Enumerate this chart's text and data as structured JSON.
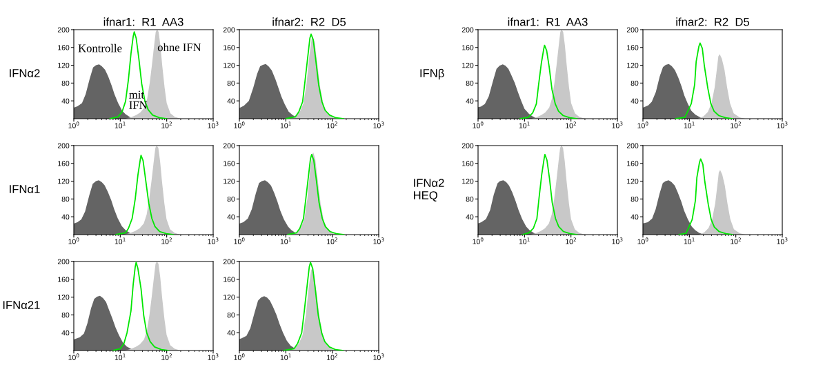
{
  "chart_data": [
    {
      "type": "area",
      "title": "ifnar1:  R1  AA3",
      "ylabel": "IFNα2",
      "log": "x",
      "xlim": [
        1,
        1000
      ],
      "xticks": [
        {
          "value": 1,
          "label": "10$^{0}$"
        },
        {
          "value": 10,
          "label": "10$^{1}$"
        },
        {
          "value": 100,
          "label": "10$^{2}$"
        },
        {
          "value": 1000,
          "label": "10$^{3}$"
        }
      ],
      "ylim": [
        0,
        200
      ],
      "yticks": [
        40,
        80,
        120,
        160,
        200
      ],
      "annotations": [
        "Kontrolle",
        "ohne IFN",
        "mit\nIFN"
      ],
      "series": [
        {
          "color": "#646464",
          "x": [
            1,
            1.2,
            1.5,
            1.8,
            2.2,
            2.6,
            3,
            3.5,
            4,
            4.7,
            5.5,
            6.5,
            7.5,
            9,
            11,
            13,
            16,
            20
          ],
          "values": [
            25,
            28,
            35,
            55,
            90,
            115,
            120,
            122,
            118,
            110,
            95,
            75,
            55,
            35,
            18,
            10,
            4,
            0
          ]
        },
        {
          "color": "#c8c8c8",
          "x": [
            13,
            17,
            22,
            27,
            33,
            38,
            43,
            48,
            53,
            58,
            62,
            67,
            73,
            80,
            90,
            100,
            120,
            150,
            200
          ],
          "values": [
            0,
            3,
            8,
            14,
            25,
            45,
            80,
            120,
            160,
            195,
            200,
            195,
            165,
            120,
            70,
            35,
            12,
            4,
            0
          ]
        },
        {
          "type": "line",
          "color": "#00e600",
          "x": [
            6,
            9,
            11,
            13,
            15,
            17,
            19,
            20,
            22,
            25,
            29,
            34,
            40,
            50,
            70,
            100
          ],
          "values": [
            0,
            4,
            16,
            39,
            88,
            146,
            185,
            195,
            181,
            137,
            78,
            39,
            20,
            8,
            2,
            0
          ]
        }
      ]
    },
    {
      "type": "area",
      "title": "ifnar2:  R2  D5",
      "log": "x",
      "xlim": [
        1,
        1000
      ],
      "xticks": [
        {
          "value": 1,
          "label": "10$^{0}$"
        },
        {
          "value": 10,
          "label": "10$^{1}$"
        },
        {
          "value": 100,
          "label": "10$^{2}$"
        },
        {
          "value": 1000,
          "label": "10$^{3}$"
        }
      ],
      "ylim": [
        0,
        200
      ],
      "yticks": [
        40,
        80,
        120,
        160,
        200
      ],
      "series": [
        {
          "color": "#646464",
          "x": [
            1,
            1.25,
            1.6,
            2,
            2.4,
            2.8,
            3.2,
            3.7,
            4.3,
            5,
            6,
            7,
            8,
            9.5,
            11.5,
            14,
            17,
            21
          ],
          "values": [
            24,
            29,
            40,
            70,
            100,
            118,
            121,
            123,
            117,
            108,
            88,
            68,
            50,
            32,
            16,
            8,
            3,
            0
          ]
        },
        {
          "color": "#c8c8c8",
          "x": [
            12,
            16,
            20,
            24,
            28,
            32,
            36,
            38,
            42,
            48,
            55,
            65,
            80,
            100,
            140
          ],
          "values": [
            0,
            5,
            15,
            35,
            80,
            140,
            180,
            185,
            170,
            120,
            70,
            30,
            10,
            3,
            0
          ]
        },
        {
          "type": "line",
          "color": "#00e600",
          "x": [
            10,
            16,
            19,
            23,
            26,
            30,
            33,
            35,
            39,
            44,
            51,
            60,
            70,
            88,
            120,
            175
          ],
          "values": [
            0,
            4,
            15,
            38,
            86,
            143,
            181,
            190,
            177,
            133,
            76,
            38,
            19,
            8,
            2,
            0
          ]
        }
      ]
    },
    {
      "type": "area",
      "title": "ifnar1:  R1  AA3",
      "ylabel": "IFNβ",
      "log": "x",
      "xlim": [
        1,
        1000
      ],
      "xticks": [
        {
          "value": 1,
          "label": "10$^{0}$"
        },
        {
          "value": 10,
          "label": "10$^{1}$"
        },
        {
          "value": 100,
          "label": "10$^{2}$"
        },
        {
          "value": 1000,
          "label": "10$^{3}$"
        }
      ],
      "ylim": [
        0,
        200
      ],
      "yticks": [
        40,
        80,
        120,
        160,
        200
      ],
      "series": [
        {
          "color": "#646464",
          "x": [
            1,
            1.15,
            1.4,
            1.7,
            2.1,
            2.5,
            2.9,
            3.4,
            3.9,
            4.5,
            5.2,
            6.2,
            7.2,
            8.5,
            10,
            12.5,
            15,
            19
          ],
          "values": [
            26,
            27,
            33,
            50,
            85,
            112,
            119,
            122,
            119,
            112,
            98,
            80,
            60,
            40,
            22,
            11,
            5,
            0
          ]
        },
        {
          "color": "#c8c8c8",
          "x": [
            14,
            18,
            23,
            28,
            34,
            39,
            44,
            49,
            54,
            59,
            63,
            68,
            74,
            81,
            91,
            101,
            122,
            152,
            205
          ],
          "values": [
            0,
            3,
            8,
            14,
            25,
            45,
            80,
            120,
            160,
            195,
            200,
            195,
            165,
            120,
            70,
            35,
            12,
            4,
            0
          ]
        },
        {
          "type": "line",
          "color": "#00e600",
          "x": [
            8,
            12,
            15,
            18,
            20,
            23,
            26,
            27,
            30,
            34,
            39,
            46,
            54,
            68,
            95,
            135
          ],
          "values": [
            0,
            3,
            13,
            33,
            74,
            124,
            157,
            165,
            153,
            116,
            66,
            33,
            17,
            7,
            2,
            0
          ]
        }
      ]
    },
    {
      "type": "area",
      "title": "ifnar2:  R2  D5",
      "log": "x",
      "xlim": [
        1,
        1000
      ],
      "xticks": [
        {
          "value": 1,
          "label": "10$^{0}$"
        },
        {
          "value": 10,
          "label": "10$^{1}$"
        },
        {
          "value": 100,
          "label": "10$^{2}$"
        },
        {
          "value": 1000,
          "label": "10$^{3}$"
        }
      ],
      "ylim": [
        0,
        200
      ],
      "yticks": [
        40,
        80,
        120,
        160,
        200
      ],
      "series": [
        {
          "color": "#646464",
          "x": [
            1,
            1.3,
            1.55,
            1.9,
            2.3,
            2.7,
            3.1,
            3.6,
            4.2,
            4.9,
            5.8,
            6.8,
            7.8,
            9.2,
            11,
            13.5,
            16.5,
            20
          ],
          "values": [
            25,
            30,
            38,
            60,
            95,
            116,
            121,
            123,
            118,
            109,
            92,
            72,
            52,
            34,
            18,
            9,
            4,
            0
          ]
        },
        {
          "color": "#c8c8c8",
          "x": [
            15,
            20,
            25,
            30,
            35,
            40,
            42,
            45,
            50,
            57,
            65,
            75,
            90,
            120,
            160
          ],
          "values": [
            0,
            5,
            15,
            35,
            70,
            120,
            140,
            145,
            135,
            110,
            70,
            35,
            12,
            3,
            0
          ]
        },
        {
          "type": "line",
          "color": "#00e600",
          "x": [
            5,
            8,
            9,
            11,
            13,
            14,
            16,
            17,
            19,
            21,
            25,
            29,
            34,
            43,
            60,
            85
          ],
          "values": [
            0,
            3,
            14,
            34,
            77,
            128,
            162,
            170,
            158,
            119,
            68,
            34,
            17,
            7,
            2,
            0
          ]
        }
      ]
    },
    {
      "type": "area",
      "ylabel": "IFNα1",
      "log": "x",
      "xlim": [
        1,
        1000
      ],
      "xticks": [
        {
          "value": 1,
          "label": "10$^{0}$"
        },
        {
          "value": 10,
          "label": "10$^{1}$"
        },
        {
          "value": 100,
          "label": "10$^{2}$"
        },
        {
          "value": 1000,
          "label": "10$^{3}$"
        }
      ],
      "ylim": [
        0,
        200
      ],
      "yticks": [
        40,
        80,
        120,
        160,
        200
      ],
      "series": [
        {
          "color": "#646464",
          "x": [
            1,
            1.2,
            1.45,
            1.75,
            2.15,
            2.55,
            3,
            3.45,
            4,
            4.6,
            5.4,
            6.4,
            7.4,
            8.8,
            10.8,
            13,
            16,
            20
          ],
          "values": [
            25,
            28,
            34,
            52,
            88,
            114,
            120,
            122,
            118,
            111,
            96,
            77,
            57,
            37,
            19,
            10,
            4,
            0
          ]
        },
        {
          "color": "#c8c8c8",
          "x": [
            12,
            16,
            21,
            26,
            32,
            37,
            42,
            47,
            52,
            57,
            61,
            66,
            72,
            79,
            89,
            99,
            118,
            148,
            195
          ],
          "values": [
            0,
            3,
            8,
            14,
            25,
            45,
            80,
            120,
            160,
            195,
            200,
            195,
            165,
            120,
            70,
            35,
            12,
            4,
            0
          ]
        },
        {
          "type": "line",
          "color": "#00e600",
          "x": [
            8,
            13,
            15,
            18,
            21,
            24,
            27,
            28,
            31,
            35,
            41,
            48,
            56,
            70,
            98,
            140
          ],
          "values": [
            0,
            4,
            14,
            36,
            80,
            134,
            169,
            178,
            166,
            125,
            71,
            36,
            18,
            7,
            2,
            0
          ]
        }
      ]
    },
    {
      "type": "area",
      "log": "x",
      "xlim": [
        1,
        1000
      ],
      "xticks": [
        {
          "value": 1,
          "label": "10$^{0}$"
        },
        {
          "value": 10,
          "label": "10$^{1}$"
        },
        {
          "value": 100,
          "label": "10$^{2}$"
        },
        {
          "value": 1000,
          "label": "10$^{3}$"
        }
      ],
      "ylim": [
        0,
        200
      ],
      "yticks": [
        40,
        80,
        120,
        160,
        200
      ],
      "series": [
        {
          "color": "#646464",
          "x": [
            1,
            1.22,
            1.52,
            1.85,
            2.25,
            2.65,
            3.05,
            3.55,
            4.1,
            4.8,
            5.6,
            6.6,
            7.6,
            9.1,
            11.2,
            13.2,
            16.2,
            20.5
          ],
          "values": [
            25,
            28,
            36,
            57,
            92,
            116,
            120,
            122,
            118,
            110,
            94,
            74,
            54,
            34,
            18,
            10,
            4,
            0
          ]
        },
        {
          "color": "#c8c8c8",
          "x": [
            13,
            17,
            21,
            25,
            29,
            33,
            37,
            39,
            43,
            49,
            56,
            66,
            81,
            101,
            142
          ],
          "values": [
            0,
            5,
            15,
            35,
            80,
            140,
            180,
            185,
            170,
            120,
            70,
            30,
            10,
            3,
            0
          ]
        },
        {
          "type": "line",
          "color": "#00e600",
          "x": [
            11,
            17,
            20,
            24,
            27,
            31,
            34,
            36,
            40,
            45,
            52,
            61,
            71,
            89,
            122,
            178
          ],
          "values": [
            0,
            4,
            14,
            36,
            81,
            135,
            171,
            180,
            167,
            126,
            72,
            36,
            18,
            7,
            2,
            0
          ]
        }
      ]
    },
    {
      "type": "area",
      "ylabel": "IFNα2\nHEQ",
      "log": "x",
      "xlim": [
        1,
        1000
      ],
      "xticks": [
        {
          "value": 1,
          "label": "10$^{0}$"
        },
        {
          "value": 10,
          "label": "10$^{1}$"
        },
        {
          "value": 100,
          "label": "10$^{2}$"
        },
        {
          "value": 1000,
          "label": "10$^{3}$"
        }
      ],
      "ylim": [
        0,
        200
      ],
      "yticks": [
        40,
        80,
        120,
        160,
        200
      ],
      "series": [
        {
          "color": "#646464",
          "x": [
            1,
            1.18,
            1.48,
            1.82,
            2.18,
            2.62,
            2.95,
            3.5,
            4.05,
            4.65,
            5.45,
            6.45,
            7.45,
            8.9,
            10.9,
            12.8,
            15.8,
            19.5
          ],
          "values": [
            25,
            28,
            35,
            55,
            90,
            115,
            120,
            122,
            118,
            110,
            95,
            75,
            55,
            35,
            18,
            10,
            4,
            0
          ]
        },
        {
          "color": "#c8c8c8",
          "x": [
            13.5,
            17.5,
            22.5,
            27.5,
            33.5,
            38.5,
            43.5,
            48.5,
            53.5,
            58.5,
            62.5,
            67.5,
            73.5,
            80.5,
            90.5,
            100.5,
            121,
            151,
            202
          ],
          "values": [
            0,
            3,
            8,
            14,
            25,
            45,
            80,
            120,
            160,
            195,
            200,
            195,
            165,
            120,
            70,
            35,
            12,
            4,
            0
          ]
        },
        {
          "type": "line",
          "color": "#00e600",
          "x": [
            9,
            12.5,
            15.5,
            18.5,
            20.5,
            23.5,
            26.5,
            27.5,
            30.5,
            34.5,
            39.5,
            46.5,
            54.5,
            68.5,
            96,
            136
          ],
          "values": [
            0,
            4,
            14,
            36,
            81,
            135,
            171,
            180,
            167,
            126,
            72,
            36,
            18,
            7,
            2,
            0
          ]
        }
      ]
    },
    {
      "type": "area",
      "log": "x",
      "xlim": [
        1,
        1000
      ],
      "xticks": [
        {
          "value": 1,
          "label": "10$^{0}$"
        },
        {
          "value": 10,
          "label": "10$^{1}$"
        },
        {
          "value": 100,
          "label": "10$^{2}$"
        },
        {
          "value": 1000,
          "label": "10$^{3}$"
        }
      ],
      "ylim": [
        0,
        200
      ],
      "yticks": [
        40,
        80,
        120,
        160,
        200
      ],
      "series": [
        {
          "color": "#646464",
          "x": [
            1,
            1.28,
            1.58,
            1.88,
            2.28,
            2.68,
            3.08,
            3.58,
            4.15,
            4.85,
            5.65,
            6.7,
            7.7,
            9.3,
            11.3,
            13.3,
            16.3,
            21
          ],
          "values": [
            25,
            28,
            36,
            57,
            92,
            116,
            120,
            122,
            118,
            110,
            94,
            74,
            54,
            34,
            18,
            10,
            4,
            0
          ]
        },
        {
          "color": "#c8c8c8",
          "x": [
            16,
            21,
            26,
            31,
            36,
            41,
            43,
            46,
            51,
            58,
            66,
            76,
            91,
            121,
            162
          ],
          "values": [
            0,
            5,
            15,
            35,
            70,
            120,
            140,
            145,
            135,
            110,
            70,
            35,
            12,
            3,
            0
          ]
        },
        {
          "type": "line",
          "color": "#00e600",
          "x": [
            6,
            8.5,
            9.5,
            11.5,
            13.5,
            14.5,
            16.5,
            17.5,
            19.5,
            21.5,
            25.5,
            29.5,
            34.5,
            43.5,
            61,
            86
          ],
          "values": [
            0,
            3,
            14,
            34,
            77,
            128,
            162,
            170,
            158,
            119,
            68,
            34,
            17,
            7,
            2,
            0
          ]
        }
      ]
    },
    {
      "type": "area",
      "ylabel": "IFNα21",
      "log": "x",
      "xlim": [
        1,
        1000
      ],
      "xticks": [
        {
          "value": 1,
          "label": "10$^{0}$"
        },
        {
          "value": 10,
          "label": "10$^{1}$"
        },
        {
          "value": 100,
          "label": "10$^{2}$"
        },
        {
          "value": 1000,
          "label": "10$^{3}$"
        }
      ],
      "ylim": [
        0,
        200
      ],
      "yticks": [
        40,
        80,
        120,
        160,
        200
      ],
      "series": [
        {
          "color": "#646464",
          "x": [
            1,
            1.35,
            1.65,
            1.95,
            2.35,
            2.75,
            3.15,
            3.65,
            4.25,
            4.95,
            5.7,
            6.75,
            7.9,
            9.4,
            11.4,
            13.8,
            17,
            21.5
          ],
          "values": [
            25,
            30,
            38,
            60,
            95,
            116,
            121,
            123,
            118,
            109,
            92,
            72,
            52,
            34,
            18,
            9,
            4,
            0
          ]
        },
        {
          "color": "#c8c8c8",
          "x": [
            12.5,
            16.5,
            21.5,
            26.5,
            32.5,
            37.5,
            42.5,
            47.5,
            52.5,
            57.5,
            61.5,
            66.5,
            72.5,
            79.5,
            89.5,
            99.5,
            119,
            149,
            198
          ],
          "values": [
            0,
            3,
            8,
            14,
            25,
            45,
            80,
            120,
            160,
            195,
            200,
            195,
            165,
            120,
            70,
            35,
            12,
            4,
            0
          ]
        },
        {
          "type": "line",
          "color": "#00e600",
          "x": [
            7,
            10,
            12,
            14,
            17,
            19,
            21,
            22,
            24,
            28,
            32,
            37,
            44,
            55,
            77,
            110
          ],
          "values": [
            0,
            4,
            16,
            40,
            89,
            149,
            188,
            198,
            184,
            139,
            79,
            40,
            20,
            8,
            2,
            0
          ]
        }
      ]
    },
    {
      "type": "area",
      "log": "x",
      "xlim": [
        1,
        1000
      ],
      "xticks": [
        {
          "value": 1,
          "label": "10$^{0}$"
        },
        {
          "value": 10,
          "label": "10$^{1}$"
        },
        {
          "value": 100,
          "label": "10$^{2}$"
        },
        {
          "value": 1000,
          "label": "10$^{3}$"
        }
      ],
      "ylim": [
        0,
        200
      ],
      "yticks": [
        40,
        80,
        120,
        160,
        200
      ],
      "series": [
        {
          "color": "#646464",
          "x": [
            1,
            1.1,
            1.42,
            1.72,
            2.12,
            2.52,
            2.92,
            3.42,
            3.95,
            4.55,
            5.3,
            6.3,
            7.3,
            8.7,
            10.5,
            12.7,
            15.5,
            19.8
          ],
          "values": [
            26,
            27,
            33,
            50,
            85,
            112,
            119,
            122,
            119,
            112,
            98,
            80,
            60,
            40,
            22,
            11,
            5,
            0
          ]
        },
        {
          "color": "#c8c8c8",
          "x": [
            11,
            15,
            19,
            23,
            27,
            31,
            35,
            37,
            41,
            47,
            54,
            64,
            79,
            99,
            138
          ],
          "values": [
            0,
            5,
            15,
            35,
            80,
            140,
            180,
            185,
            170,
            120,
            70,
            30,
            10,
            3,
            0
          ]
        },
        {
          "type": "line",
          "color": "#00e600",
          "x": [
            9,
            15,
            18,
            22,
            25,
            29,
            32,
            34,
            38,
            43,
            50,
            59,
            69,
            87,
            118,
            172
          ],
          "values": [
            0,
            4,
            16,
            40,
            89,
            149,
            188,
            198,
            184,
            139,
            79,
            40,
            20,
            8,
            2,
            0
          ]
        }
      ]
    }
  ]
}
